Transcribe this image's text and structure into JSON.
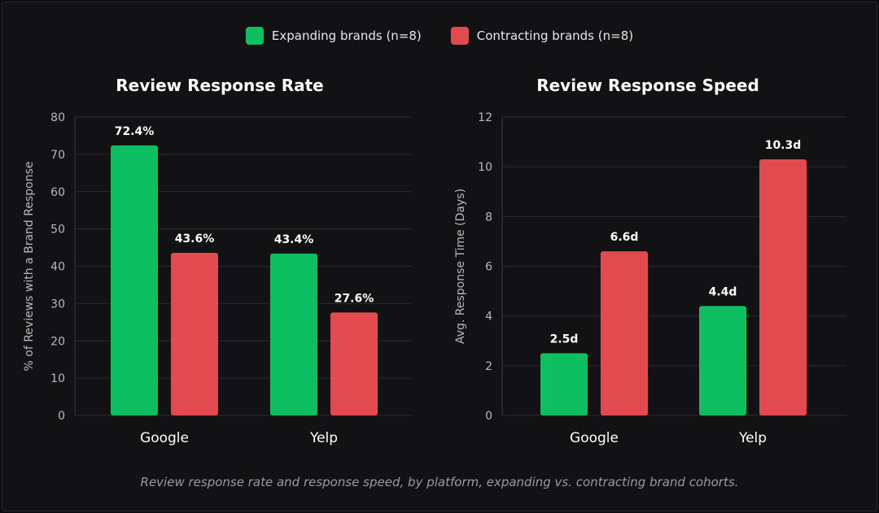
{
  "legend": {
    "expanding": "Expanding brands (n=8)",
    "contracting": "Contracting brands (n=8)"
  },
  "colors": {
    "expanding": "#0ebf62",
    "contracting": "#e14b50",
    "grid": "#2c2c30",
    "axis_text": "#b9b9be",
    "background": "#121214"
  },
  "caption": "Review response rate and response speed, by platform, expanding vs. contracting brand cohorts.",
  "chart_data": [
    {
      "type": "bar",
      "title": "Review Response Rate",
      "ylabel": "% of Reviews with a Brand Response",
      "xlabel": "",
      "categories": [
        "Google",
        "Yelp"
      ],
      "ylim": [
        0,
        80
      ],
      "yticks": [
        0,
        10,
        20,
        30,
        40,
        50,
        60,
        70,
        80
      ],
      "series": [
        {
          "name": "Expanding brands (n=8)",
          "values": [
            72.4,
            43.4
          ],
          "labels": [
            "72.4%",
            "43.4%"
          ]
        },
        {
          "name": "Contracting brands (n=8)",
          "values": [
            43.6,
            27.6
          ],
          "labels": [
            "43.6%",
            "27.6%"
          ]
        }
      ],
      "grid": true
    },
    {
      "type": "bar",
      "title": "Review Response Speed",
      "ylabel": "Avg. Response Time (Days)",
      "xlabel": "",
      "categories": [
        "Google",
        "Yelp"
      ],
      "ylim": [
        0,
        12
      ],
      "yticks": [
        0,
        2,
        4,
        6,
        8,
        10,
        12
      ],
      "series": [
        {
          "name": "Expanding brands (n=8)",
          "values": [
            2.5,
            4.4
          ],
          "labels": [
            "2.5d",
            "4.4d"
          ]
        },
        {
          "name": "Contracting brands (n=8)",
          "values": [
            6.6,
            10.3
          ],
          "labels": [
            "6.6d",
            "10.3d"
          ]
        }
      ],
      "grid": true
    }
  ]
}
